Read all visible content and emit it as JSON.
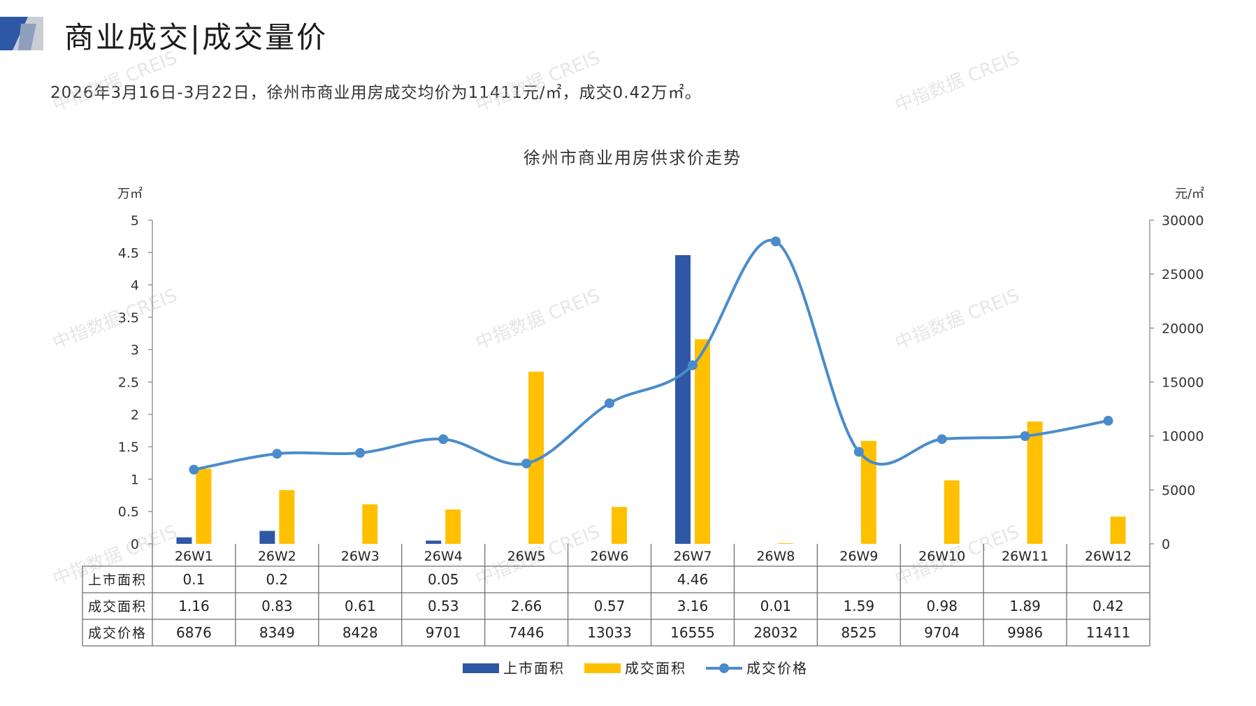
{
  "header": {
    "title": "商业成交|成交量价",
    "summary": "2026年3月16日-3月22日，徐州市商业用房成交均价为11411元/㎡，成交0.42万㎡。"
  },
  "watermark": {
    "text": "中指数据 CREIS"
  },
  "colors": {
    "listing": "#2E58A6",
    "deal_area": "#FFC000",
    "deal_price": "#4A8CCB",
    "axis": "#7f7f7f",
    "logo_dark": "#2E58A6",
    "logo_light": "#B8BDC6"
  },
  "chart_data": {
    "type": "bar",
    "title": "徐州市商业用房供求价走势",
    "left_unit": "万㎡",
    "right_unit": "元/㎡",
    "categories": [
      "26W1",
      "26W2",
      "26W3",
      "26W4",
      "26W5",
      "26W6",
      "26W7",
      "26W8",
      "26W9",
      "26W10",
      "26W11",
      "26W12"
    ],
    "left_ylim": [
      0,
      5
    ],
    "left_ticks": [
      "0",
      "0.5",
      "1",
      "1.5",
      "2",
      "2.5",
      "3",
      "3.5",
      "4",
      "4.5",
      "5"
    ],
    "right_ylim": [
      0,
      30000
    ],
    "right_ticks": [
      "0",
      "5000",
      "10000",
      "15000",
      "20000",
      "25000",
      "30000"
    ],
    "legend_position": "bottom",
    "series": [
      {
        "name": "上市面积",
        "type": "bar",
        "axis": "left",
        "values": [
          0.1,
          0.2,
          null,
          0.05,
          null,
          null,
          4.46,
          null,
          null,
          null,
          null,
          null
        ],
        "labels": [
          "0.1",
          "0.2",
          "",
          "0.05",
          "",
          "",
          "4.46",
          "",
          "",
          "",
          "",
          ""
        ]
      },
      {
        "name": "成交面积",
        "type": "bar",
        "axis": "left",
        "values": [
          1.16,
          0.83,
          0.61,
          0.53,
          2.66,
          0.57,
          3.16,
          0.01,
          1.59,
          0.98,
          1.89,
          0.42
        ],
        "labels": [
          "1.16",
          "0.83",
          "0.61",
          "0.53",
          "2.66",
          "0.57",
          "3.16",
          "0.01",
          "1.59",
          "0.98",
          "1.89",
          "0.42"
        ]
      },
      {
        "name": "成交价格",
        "type": "line",
        "axis": "right",
        "values": [
          6876,
          8349,
          8428,
          9701,
          7446,
          13033,
          16555,
          28032,
          8525,
          9704,
          9986,
          11411
        ],
        "labels": [
          "6876",
          "8349",
          "8428",
          "9701",
          "7446",
          "13033",
          "16555",
          "28032",
          "8525",
          "9704",
          "9986",
          "11411"
        ]
      }
    ]
  }
}
